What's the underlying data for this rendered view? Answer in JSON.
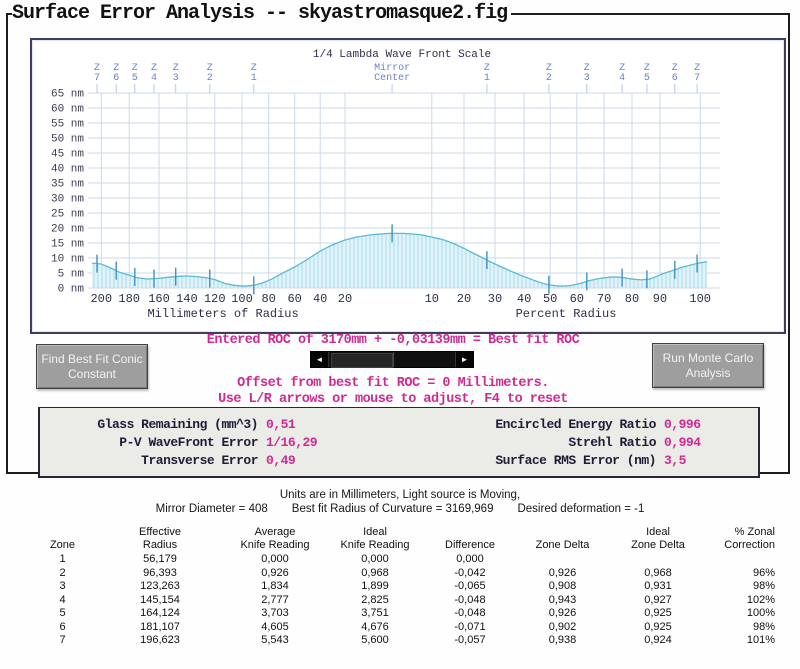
{
  "window": {
    "title": "Surface Error Analysis -- skyastromasque2.fig"
  },
  "chart_data": {
    "type": "area",
    "title": "1/4 Lambda Wave Front Scale",
    "y_unit": "nm",
    "y_max": 65,
    "y_step": 5,
    "grid": true,
    "x_axes": [
      {
        "label": "Millimeters of Radius",
        "ticks": [
          {
            "label": "200",
            "pos": 0.015
          },
          {
            "label": "180",
            "pos": 0.06
          },
          {
            "label": "160",
            "pos": 0.108
          },
          {
            "label": "140",
            "pos": 0.153
          },
          {
            "label": "120",
            "pos": 0.198
          },
          {
            "label": "100",
            "pos": 0.242
          },
          {
            "label": "80",
            "pos": 0.285
          },
          {
            "label": "60",
            "pos": 0.327
          },
          {
            "label": "40",
            "pos": 0.368
          },
          {
            "label": "20",
            "pos": 0.408
          }
        ]
      },
      {
        "label": "Percent Radius",
        "ticks": [
          {
            "label": "10",
            "pos": 0.548
          },
          {
            "label": "20",
            "pos": 0.6
          },
          {
            "label": "30",
            "pos": 0.65
          },
          {
            "label": "40",
            "pos": 0.697
          },
          {
            "label": "50",
            "pos": 0.739
          },
          {
            "label": "60",
            "pos": 0.782
          },
          {
            "label": "70",
            "pos": 0.826
          },
          {
            "label": "80",
            "pos": 0.871
          },
          {
            "label": "90",
            "pos": 0.916
          },
          {
            "label": "100",
            "pos": 0.981
          }
        ]
      }
    ],
    "zones": [
      {
        "label": "Z 7",
        "pos": 0.008
      },
      {
        "label": "Z 6",
        "pos": 0.039
      },
      {
        "label": "Z 5",
        "pos": 0.069
      },
      {
        "label": "Z 4",
        "pos": 0.1
      },
      {
        "label": "Z 3",
        "pos": 0.135
      },
      {
        "label": "Z 2",
        "pos": 0.19
      },
      {
        "label": "Z 1",
        "pos": 0.261
      },
      {
        "label": "Mirror Center",
        "pos": 0.484
      },
      {
        "label": "Z 1",
        "pos": 0.637
      },
      {
        "label": "Z 2",
        "pos": 0.737
      },
      {
        "label": "Z 3",
        "pos": 0.798
      },
      {
        "label": "Z 4",
        "pos": 0.855
      },
      {
        "label": "Z 5",
        "pos": 0.895
      },
      {
        "label": "Z 6",
        "pos": 0.94
      },
      {
        "label": "Z 7",
        "pos": 0.976
      }
    ],
    "curve": [
      [
        0.0,
        8.3
      ],
      [
        0.015,
        8.0
      ],
      [
        0.032,
        6.5
      ],
      [
        0.045,
        5.2
      ],
      [
        0.06,
        4.3
      ],
      [
        0.073,
        3.4
      ],
      [
        0.089,
        3.0
      ],
      [
        0.108,
        3.2
      ],
      [
        0.124,
        3.6
      ],
      [
        0.14,
        3.9
      ],
      [
        0.153,
        4.0
      ],
      [
        0.169,
        3.8
      ],
      [
        0.185,
        3.4
      ],
      [
        0.198,
        2.8
      ],
      [
        0.213,
        1.6
      ],
      [
        0.229,
        0.9
      ],
      [
        0.245,
        0.6
      ],
      [
        0.261,
        0.9
      ],
      [
        0.274,
        1.6
      ],
      [
        0.289,
        2.9
      ],
      [
        0.306,
        4.8
      ],
      [
        0.327,
        7.0
      ],
      [
        0.347,
        9.5
      ],
      [
        0.368,
        12.3
      ],
      [
        0.387,
        14.3
      ],
      [
        0.408,
        16.0
      ],
      [
        0.427,
        17.0
      ],
      [
        0.452,
        17.8
      ],
      [
        0.481,
        18.2
      ],
      [
        0.503,
        18.2
      ],
      [
        0.529,
        17.8
      ],
      [
        0.548,
        17.0
      ],
      [
        0.568,
        16.0
      ],
      [
        0.587,
        14.5
      ],
      [
        0.6,
        13.2
      ],
      [
        0.621,
        11.0
      ],
      [
        0.637,
        9.3
      ],
      [
        0.65,
        8.0
      ],
      [
        0.669,
        6.2
      ],
      [
        0.685,
        4.8
      ],
      [
        0.697,
        3.8
      ],
      [
        0.715,
        2.4
      ],
      [
        0.729,
        1.4
      ],
      [
        0.739,
        1.0
      ],
      [
        0.755,
        0.6
      ],
      [
        0.771,
        0.8
      ],
      [
        0.787,
        1.5
      ],
      [
        0.803,
        2.5
      ],
      [
        0.819,
        3.2
      ],
      [
        0.835,
        3.6
      ],
      [
        0.847,
        3.7
      ],
      [
        0.858,
        3.4
      ],
      [
        0.874,
        2.9
      ],
      [
        0.887,
        2.7
      ],
      [
        0.9,
        3.0
      ],
      [
        0.911,
        3.9
      ],
      [
        0.924,
        5.0
      ],
      [
        0.939,
        6.0
      ],
      [
        0.953,
        7.0
      ],
      [
        0.968,
        7.8
      ],
      [
        0.981,
        8.4
      ],
      [
        0.992,
        8.8
      ]
    ],
    "colors": {
      "fill": "#e2f4fa",
      "hatch": "#a5ddec",
      "stroke": "#5ab9d6",
      "grid": "#cdd9ea",
      "zone_tick": "#3b93c0",
      "zone_label": "#6d80cc"
    }
  },
  "roc": {
    "entered_line": "Entered ROC of 3170mm + -0,03139mm = Best fit ROC",
    "offset_line": "Offset from best fit ROC = 0 Millimeters.",
    "hint_line": "Use L/R arrows or mouse to adjust, F4 to reset"
  },
  "buttons": {
    "find_best_fit": "Find Best Fit Conic Constant",
    "run_monte_carlo": "Run Monte Carlo Analysis"
  },
  "stats": {
    "left": [
      {
        "label": "Glass Remaining (mm^3)",
        "value": "0,51"
      },
      {
        "label": "P-V WaveFront Error",
        "value": "1/16,29"
      },
      {
        "label": "Transverse Error",
        "value": "0,49"
      }
    ],
    "right": [
      {
        "label": "Encircled Energy Ratio",
        "value": "0,996"
      },
      {
        "label": "Strehl Ratio",
        "value": "0,994"
      },
      {
        "label": "Surface RMS Error (nm)",
        "value": "3,5"
      }
    ]
  },
  "footer": {
    "line1": "Units are in Millimeters, Light source is Moving,",
    "mirror_diameter": "Mirror Diameter = 408",
    "best_fit_roc": "Best fit Radius of Curvature = 3169,969",
    "desired_deformation": "Desired deformation = -1"
  },
  "table": {
    "headers": [
      "Zone",
      "Effective\nRadius",
      "Average\nKnife Reading",
      "Ideal\nKnife Reading",
      "Difference",
      "Zone Delta",
      "Ideal\nZone Delta",
      "% Zonal\nCorrection"
    ],
    "rows": [
      [
        "1",
        "56,179",
        "0,000",
        "0,000",
        "0,000",
        "",
        "",
        ""
      ],
      [
        "2",
        "96,393",
        "0,926",
        "0,968",
        "-0,042",
        "0,926",
        "0,968",
        "96%"
      ],
      [
        "3",
        "123,263",
        "1,834",
        "1,899",
        "-0,065",
        "0,908",
        "0,931",
        "98%"
      ],
      [
        "4",
        "145,154",
        "2,777",
        "2,825",
        "-0,048",
        "0,943",
        "0,927",
        "102%"
      ],
      [
        "5",
        "164,124",
        "3,703",
        "3,751",
        "-0,048",
        "0,926",
        "0,925",
        "100%"
      ],
      [
        "6",
        "181,107",
        "4,605",
        "4,676",
        "-0,071",
        "0,902",
        "0,925",
        "98%"
      ],
      [
        "7",
        "196,623",
        "5,543",
        "5,600",
        "-0,057",
        "0,938",
        "0,924",
        "101%"
      ]
    ]
  }
}
